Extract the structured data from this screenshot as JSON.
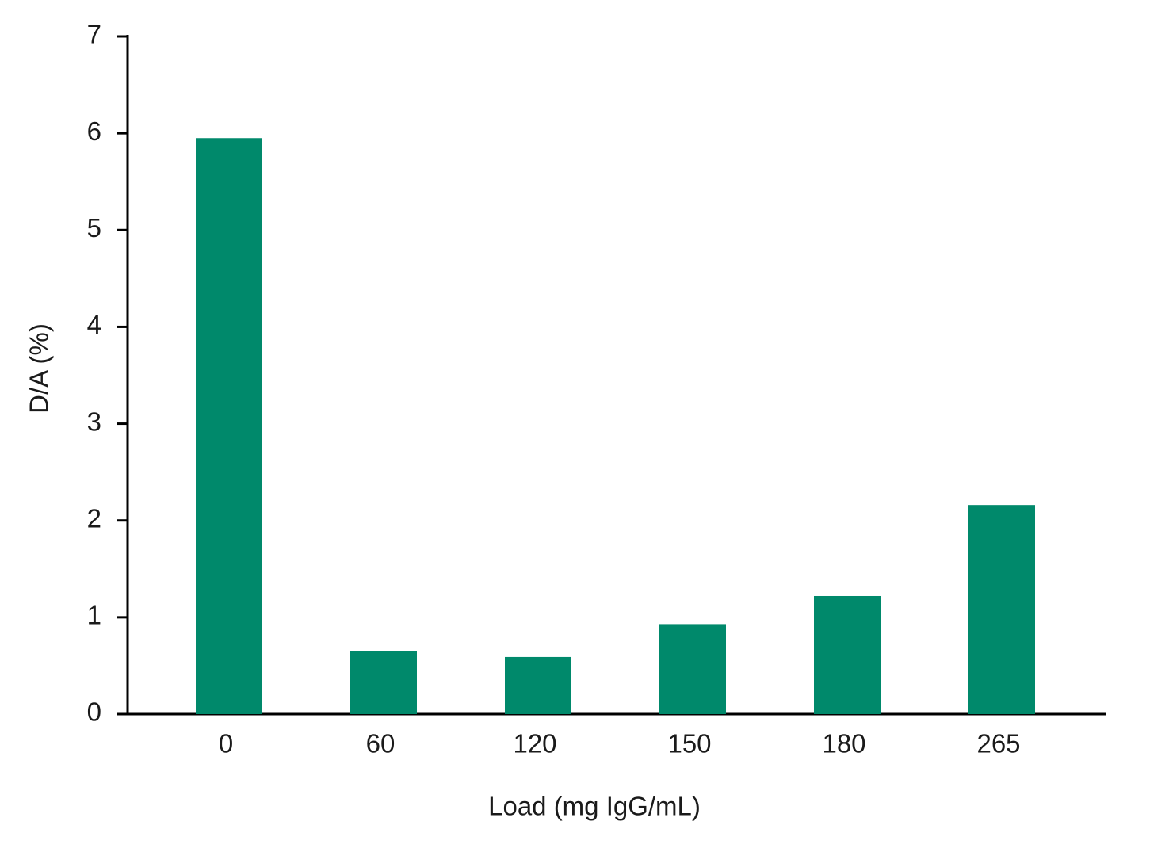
{
  "chart_data": {
    "type": "bar",
    "x_label": "Load (mg IgG/mL)",
    "y_label": "D/A (%)",
    "categories": [
      "0",
      "60",
      "120",
      "150",
      "180",
      "265"
    ],
    "values": [
      5.95,
      0.65,
      0.59,
      0.93,
      1.22,
      2.16
    ],
    "color": "#00896b",
    "ylim": [
      0,
      7
    ],
    "yticks": [
      0,
      1,
      2,
      3,
      4,
      5,
      6,
      7
    ],
    "grid": false
  }
}
